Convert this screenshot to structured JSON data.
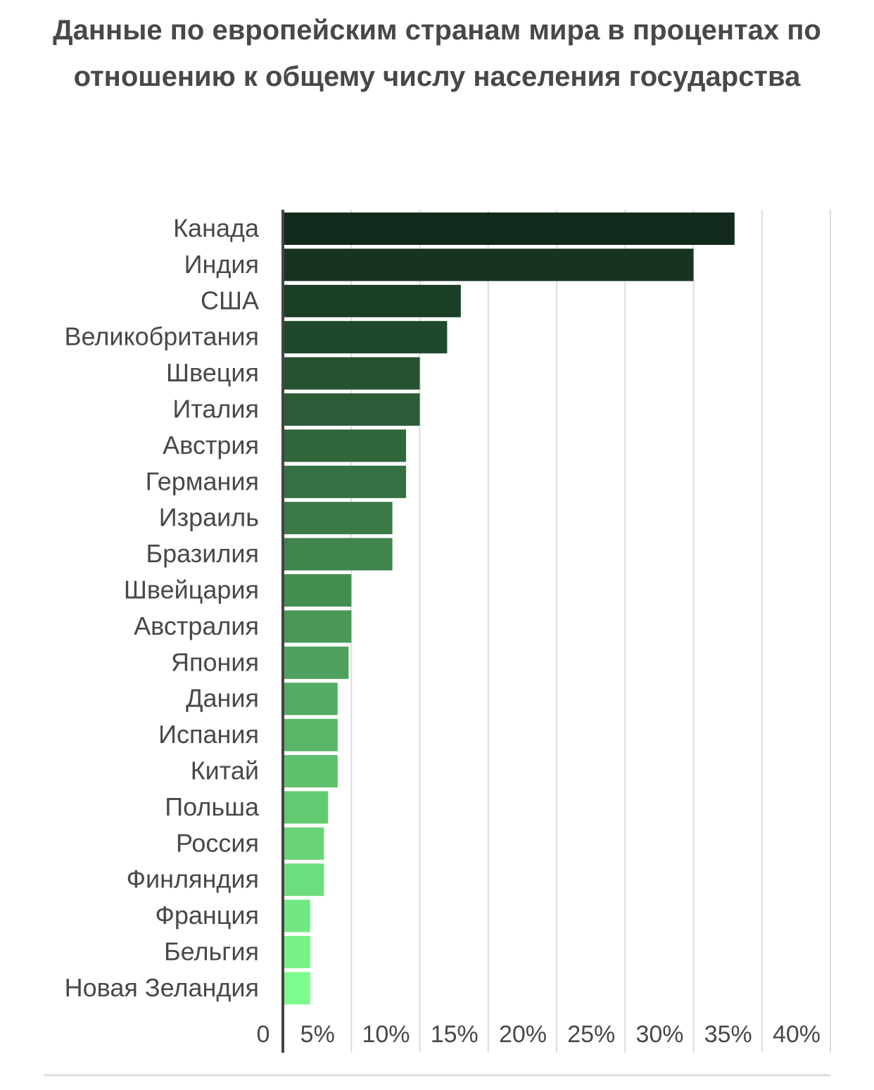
{
  "chart_data": {
    "type": "hbar",
    "title": "Данные по европейским странам мира в процентах по отношению к общему числу населения государства",
    "categories": [
      "Канада",
      "Индия",
      "США",
      "Великобритания",
      "Швеция",
      "Италия",
      "Австрия",
      "Германия",
      "Израиль",
      "Бразилия",
      "Швейцария",
      "Австралия",
      "Япония",
      "Дания",
      "Испания",
      "Китай",
      "Польша",
      "Россия",
      "Финляндия",
      "Франция",
      "Бельгия",
      "Новая Зеландия"
    ],
    "values": [
      33,
      30,
      13,
      12,
      10,
      10,
      9,
      9,
      8,
      8,
      5,
      5,
      4.8,
      4,
      4,
      4,
      3.3,
      3,
      3,
      2,
      2,
      2
    ],
    "colors": [
      "#112a1c",
      "#163421",
      "#1b3e27",
      "#20482c",
      "#265232",
      "#2b5c37",
      "#30663c",
      "#357042",
      "#3a7a47",
      "#3f844c",
      "#448e52",
      "#4a9857",
      "#4fa25d",
      "#54ac62",
      "#59b667",
      "#5ec06d",
      "#63ca72",
      "#68d477",
      "#6dde7d",
      "#73e882",
      "#78f288",
      "#7dfc8d"
    ],
    "xlim": [
      0,
      40
    ],
    "xticks": [
      0,
      {
        "value": 5,
        "label": "5%"
      },
      {
        "value": 10,
        "label": "10%"
      },
      {
        "value": 15,
        "label": "15%"
      },
      {
        "value": 20,
        "label": "20%"
      },
      {
        "value": 25,
        "label": "25%"
      },
      {
        "value": 30,
        "label": "30%"
      },
      {
        "value": 35,
        "label": "35%"
      },
      {
        "value": 40,
        "label": "40%"
      }
    ],
    "grid": true
  }
}
